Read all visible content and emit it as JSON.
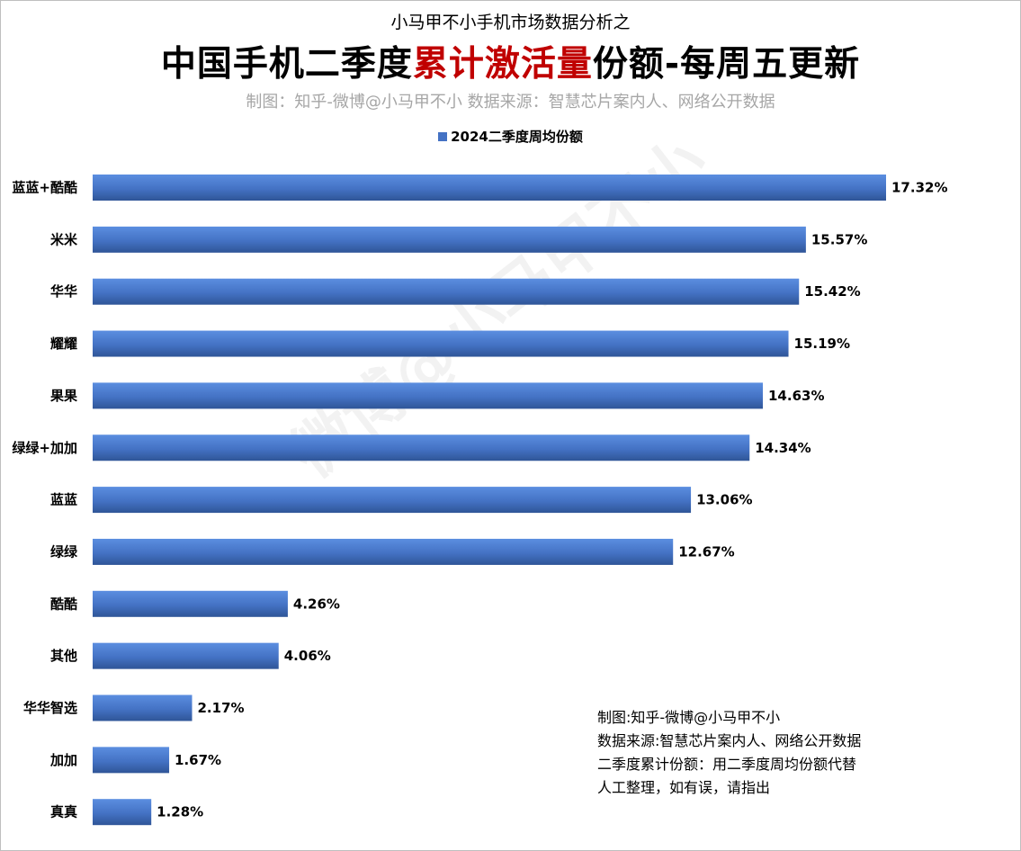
{
  "header": {
    "supertitle": "小马甲不小手机市场数据分析之",
    "title_parts": [
      "中国手机二季度",
      "累计激活量",
      "份额-每周五更新"
    ],
    "credit": "制图：知乎-微博@小马甲不小   数据来源：智慧芯片案内人、网络公开数据"
  },
  "legend": {
    "label": "2024二季度周均份额"
  },
  "colors": {
    "bar": "#4472c4",
    "bar_dark": "#2f5597",
    "highlight": "#c00000"
  },
  "notes": [
    "制图:知乎-微博@小马甲不小",
    "数据来源:智慧芯片案内人、网络公开数据",
    "二季度累计份额：用二季度周均份额代替",
    "人工整理，如有误，请指出"
  ],
  "watermark": "微博@小马甲不小",
  "chart_data": {
    "type": "bar",
    "orientation": "horizontal",
    "categories": [
      "蓝蓝+酷酷",
      "米米",
      "华华",
      "耀耀",
      "果果",
      "绿绿+加加",
      "蓝蓝",
      "绿绿",
      "酷酷",
      "其他",
      "华华智选",
      "加加",
      "真真"
    ],
    "series": [
      {
        "name": "2024二季度周均份额",
        "values": [
          17.32,
          15.57,
          15.42,
          15.19,
          14.63,
          14.34,
          13.06,
          12.67,
          4.26,
          4.06,
          2.17,
          1.67,
          1.28
        ]
      }
    ],
    "value_labels": [
      "17.32%",
      "15.57%",
      "15.42%",
      "15.19%",
      "14.63%",
      "14.34%",
      "13.06%",
      "12.67%",
      "4.26%",
      "4.06%",
      "2.17%",
      "1.67%",
      "1.28%"
    ],
    "unit": "%",
    "xlim": [
      0,
      17.32
    ],
    "grid": false,
    "legend_position": "top-center"
  }
}
